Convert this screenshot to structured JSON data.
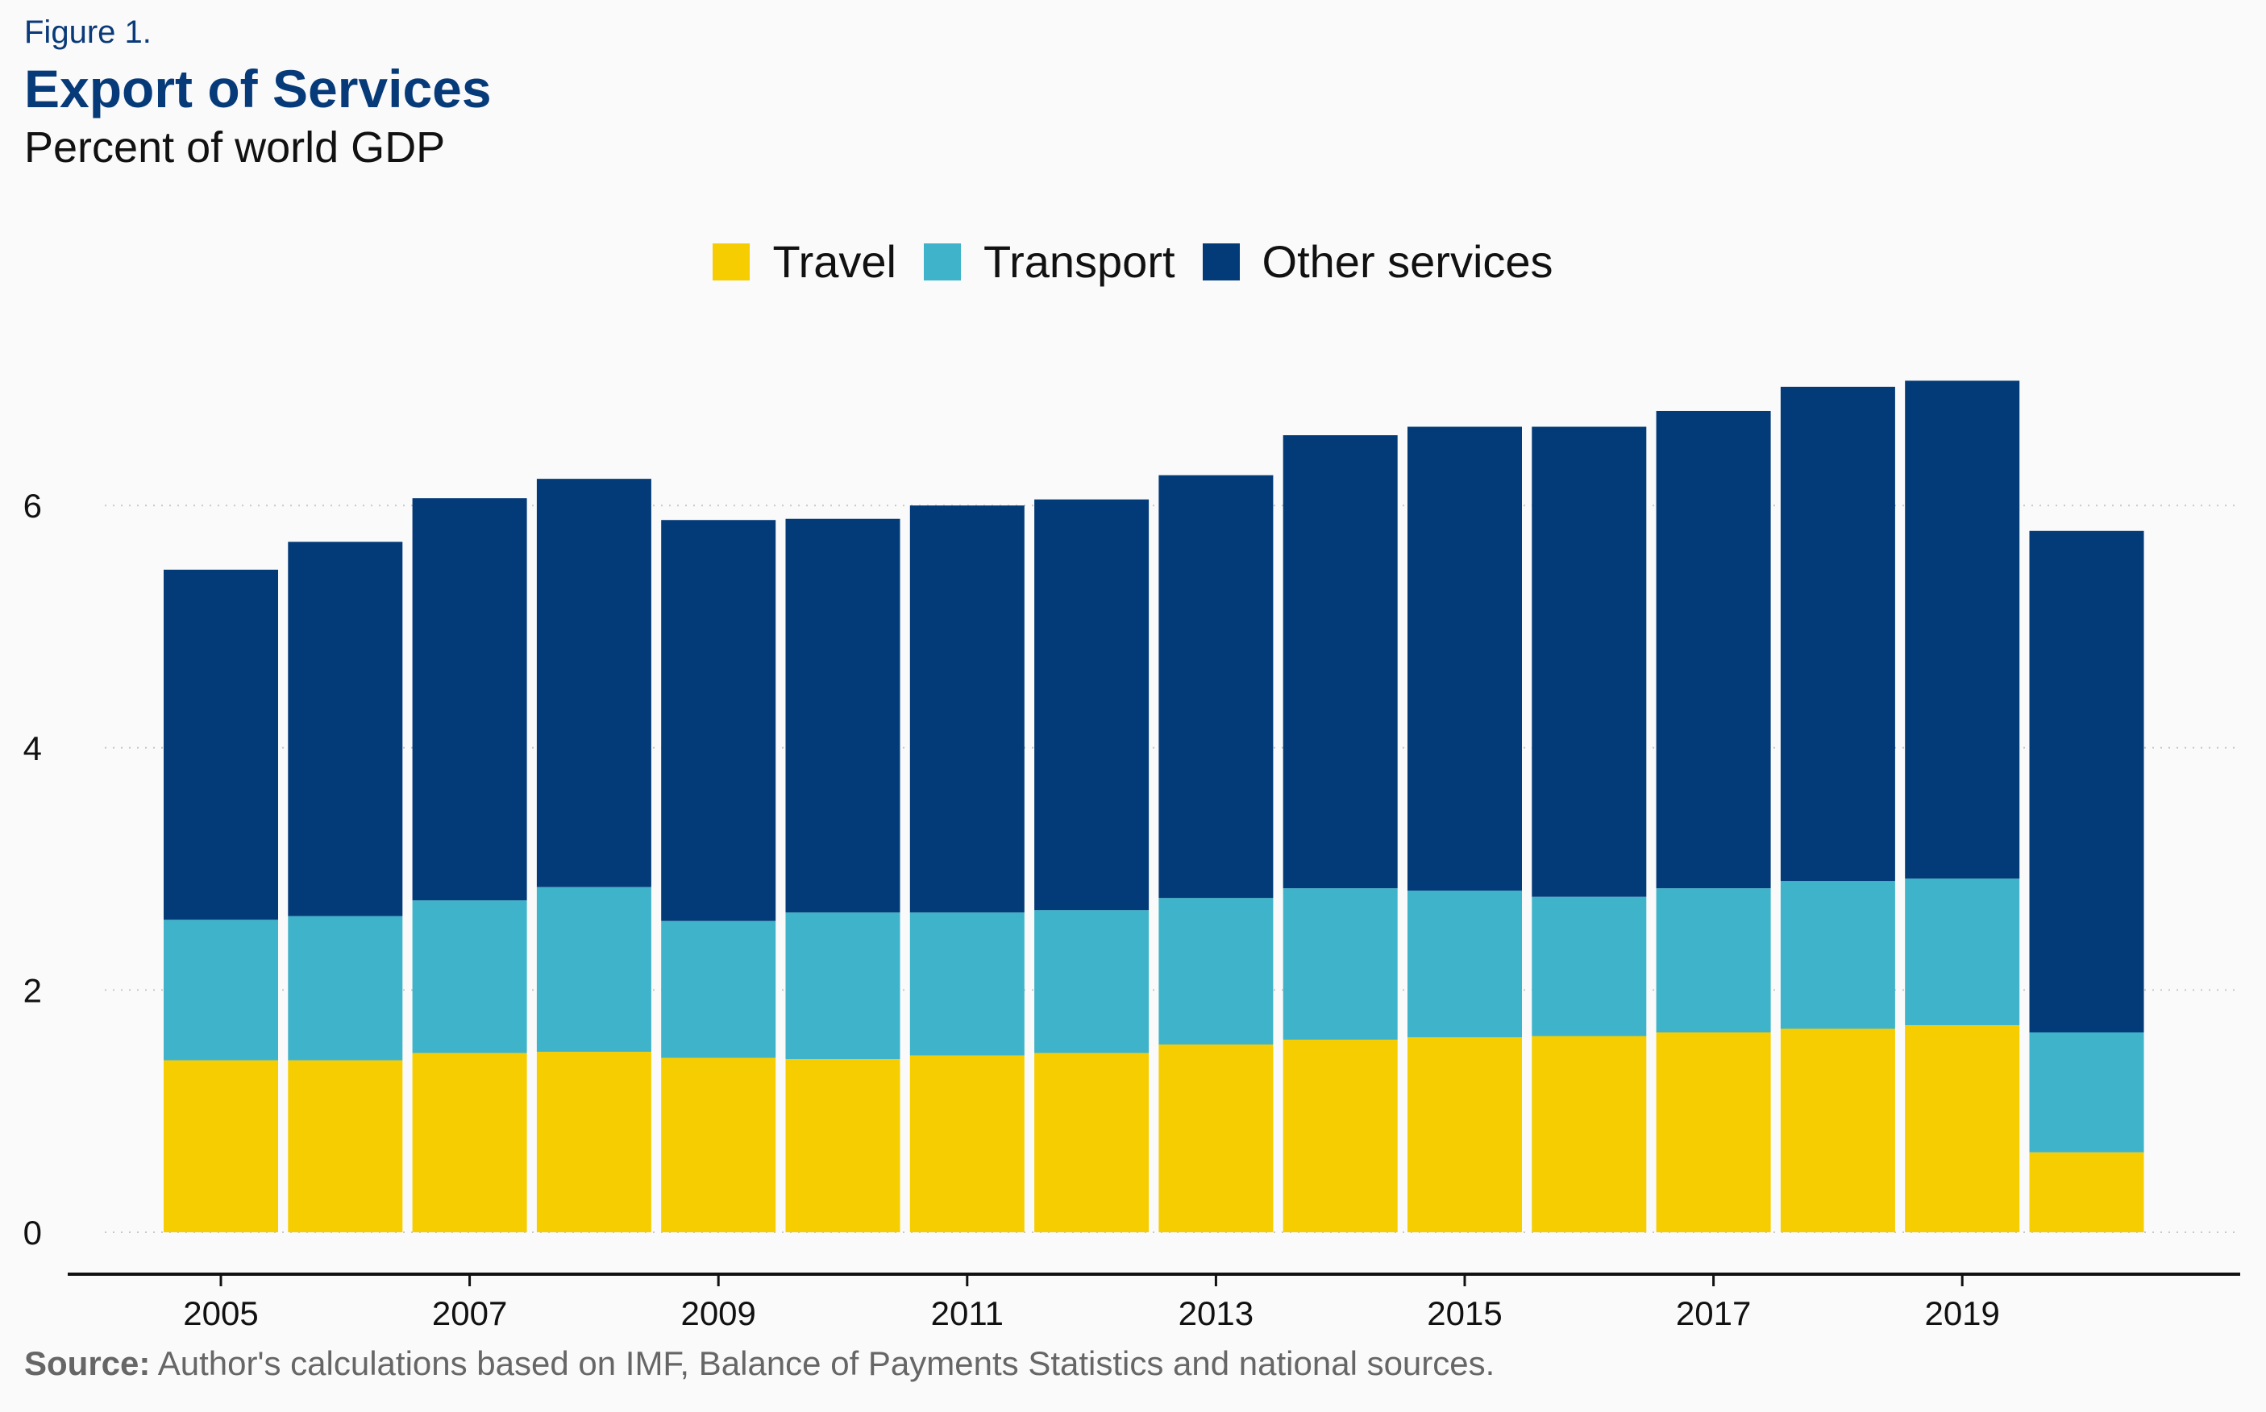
{
  "figure_label": "Figure 1.",
  "title": "Export of Services",
  "subtitle": "Percent of world GDP",
  "source_label": "Source:",
  "source_text": " Author's calculations based on IMF, Balance of Payments Statistics and national sources.",
  "colors": {
    "Travel": "#f5cd00",
    "Transport": "#3fb3c9",
    "Other services": "#033a78"
  },
  "chart_data": {
    "type": "bar",
    "stacked": true,
    "title": "Export of Services",
    "subtitle": "Percent of world GDP",
    "xlabel": "",
    "ylabel": "",
    "ylim": [
      0,
      7.5
    ],
    "yticks": [
      0,
      2,
      4,
      6
    ],
    "grid": "horizontal dotted",
    "legend": "top-center",
    "categories": [
      2005,
      2006,
      2007,
      2008,
      2009,
      2010,
      2011,
      2012,
      2013,
      2014,
      2015,
      2016,
      2017,
      2018,
      2019,
      2020
    ],
    "xtick_labels": [
      "2005",
      "2007",
      "2009",
      "2011",
      "2013",
      "2015",
      "2017",
      "2019"
    ],
    "series": [
      {
        "name": "Travel",
        "values": [
          1.42,
          1.42,
          1.48,
          1.49,
          1.44,
          1.43,
          1.46,
          1.48,
          1.55,
          1.59,
          1.61,
          1.62,
          1.65,
          1.68,
          1.71,
          0.66
        ]
      },
      {
        "name": "Transport",
        "values": [
          1.16,
          1.19,
          1.26,
          1.36,
          1.13,
          1.21,
          1.18,
          1.18,
          1.21,
          1.25,
          1.21,
          1.15,
          1.19,
          1.22,
          1.21,
          0.99
        ]
      },
      {
        "name": "Other services",
        "values": [
          2.89,
          3.09,
          3.32,
          3.37,
          3.31,
          3.25,
          3.36,
          3.39,
          3.49,
          3.74,
          3.83,
          3.88,
          3.94,
          4.08,
          4.11,
          4.14
        ]
      }
    ]
  }
}
